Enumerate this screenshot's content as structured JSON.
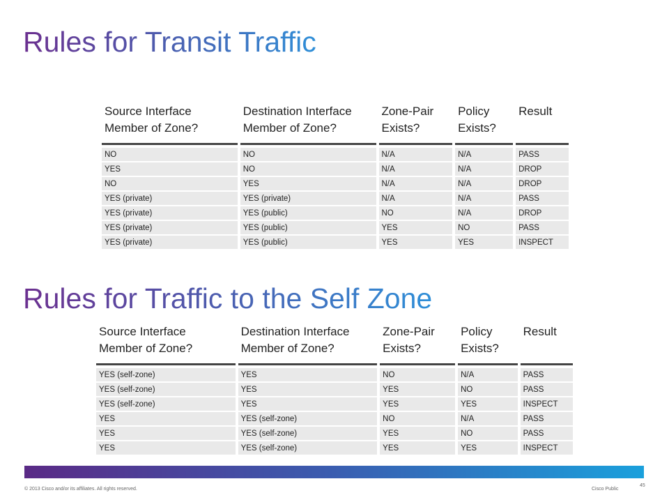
{
  "transit": {
    "title": "Rules for Transit Traffic",
    "headers": [
      [
        "Source Interface",
        "Member of Zone?"
      ],
      [
        "Destination Interface",
        "Member of Zone?"
      ],
      [
        "Zone-Pair",
        "Exists?"
      ],
      [
        "Policy",
        "Exists?"
      ],
      [
        "Result",
        ""
      ]
    ],
    "rows": [
      [
        "NO",
        "NO",
        "N/A",
        "N/A",
        "PASS"
      ],
      [
        "YES",
        "NO",
        "N/A",
        "N/A",
        "DROP"
      ],
      [
        "NO",
        "YES",
        "N/A",
        "N/A",
        "DROP"
      ],
      [
        "YES (private)",
        "YES (private)",
        "N/A",
        "N/A",
        "PASS"
      ],
      [
        "YES (private)",
        "YES (public)",
        "NO",
        "N/A",
        "DROP"
      ],
      [
        "YES (private)",
        "YES (public)",
        "YES",
        "NO",
        "PASS"
      ],
      [
        "YES (private)",
        "YES (public)",
        "YES",
        "YES",
        "INSPECT"
      ]
    ]
  },
  "self_zone": {
    "title": "Rules for Traffic to the Self Zone",
    "headers": [
      [
        "Source Interface",
        "Member of Zone?"
      ],
      [
        "Destination Interface",
        "Member of Zone?"
      ],
      [
        "Zone-Pair",
        "Exists?"
      ],
      [
        "Policy",
        "Exists?"
      ],
      [
        "Result",
        ""
      ]
    ],
    "rows": [
      [
        "YES (self-zone)",
        "YES",
        "NO",
        "N/A",
        "PASS"
      ],
      [
        "YES (self-zone)",
        "YES",
        "YES",
        "NO",
        "PASS"
      ],
      [
        "YES (self-zone)",
        "YES",
        "YES",
        "YES",
        "INSPECT"
      ],
      [
        "YES",
        "YES (self-zone)",
        "NO",
        "N/A",
        "PASS"
      ],
      [
        "YES",
        "YES (self-zone)",
        "YES",
        "NO",
        "PASS"
      ],
      [
        "YES",
        "YES (self-zone)",
        "YES",
        "YES",
        "INSPECT"
      ]
    ]
  },
  "footer": {
    "copyright": "© 2013 Cisco and/or its affiliates. All rights reserved.",
    "classification": "Cisco Public",
    "page_number": "45"
  },
  "colors": {
    "title_gradient": [
      "#6b2f8f",
      "#4b5fb0",
      "#2f8fd8"
    ],
    "bar_gradient": [
      "#5a2a86",
      "#3a5db0",
      "#1aa0dc"
    ],
    "cell_background": "#e9e9e9"
  }
}
